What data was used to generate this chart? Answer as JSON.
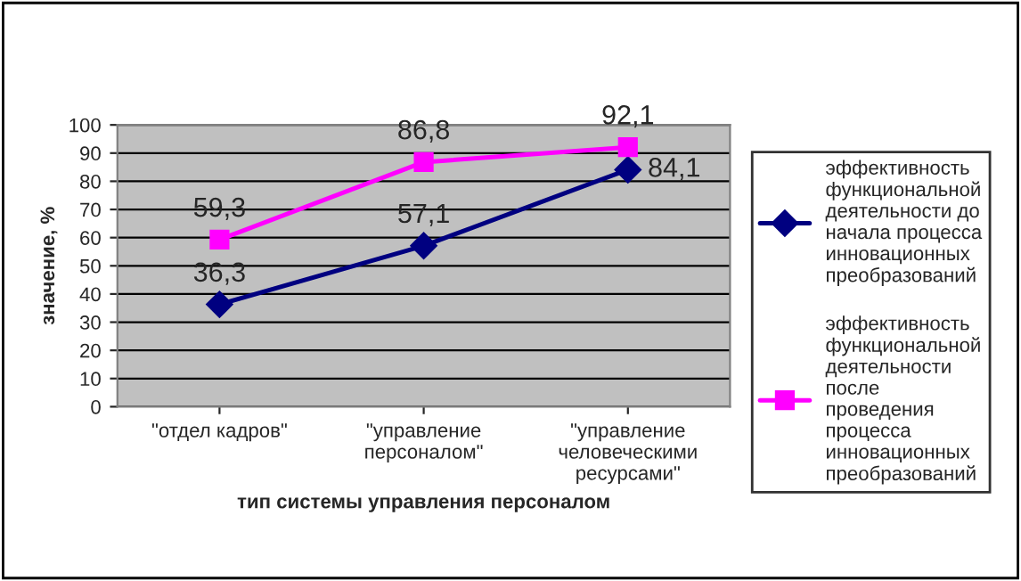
{
  "chart_data": {
    "type": "line",
    "categories": [
      "\"отдел кадров\"",
      "\"управление\nперсоналом\"",
      "\"управление\nчеловеческими\nресурсами\""
    ],
    "series": [
      {
        "name": "эффективность\nфункциональной\nдеятельности до\nначала процесса\nинновационных\nпреобразований",
        "color": "#000080",
        "marker": "diamond",
        "values": [
          36.3,
          57.1,
          84.1
        ],
        "value_labels": [
          "36,3",
          "57,1",
          "84,1"
        ]
      },
      {
        "name": "эффективность\nфункциональной\nдеятельности\nпосле\nпроведения\nпроцесса\nинновационных\nпреобразований",
        "color": "#ff00ff",
        "marker": "square",
        "values": [
          59.3,
          86.8,
          92.1
        ],
        "value_labels": [
          "59,3",
          "86,8",
          "92,1"
        ]
      }
    ],
    "xlabel": "тип системы управления персоналом",
    "ylabel": "значение, %",
    "ylim": [
      0,
      100
    ],
    "yticks": [
      0,
      10,
      20,
      30,
      40,
      50,
      60,
      70,
      80,
      90,
      100
    ],
    "grid": "y",
    "legend": "right",
    "line_style": "solid"
  }
}
